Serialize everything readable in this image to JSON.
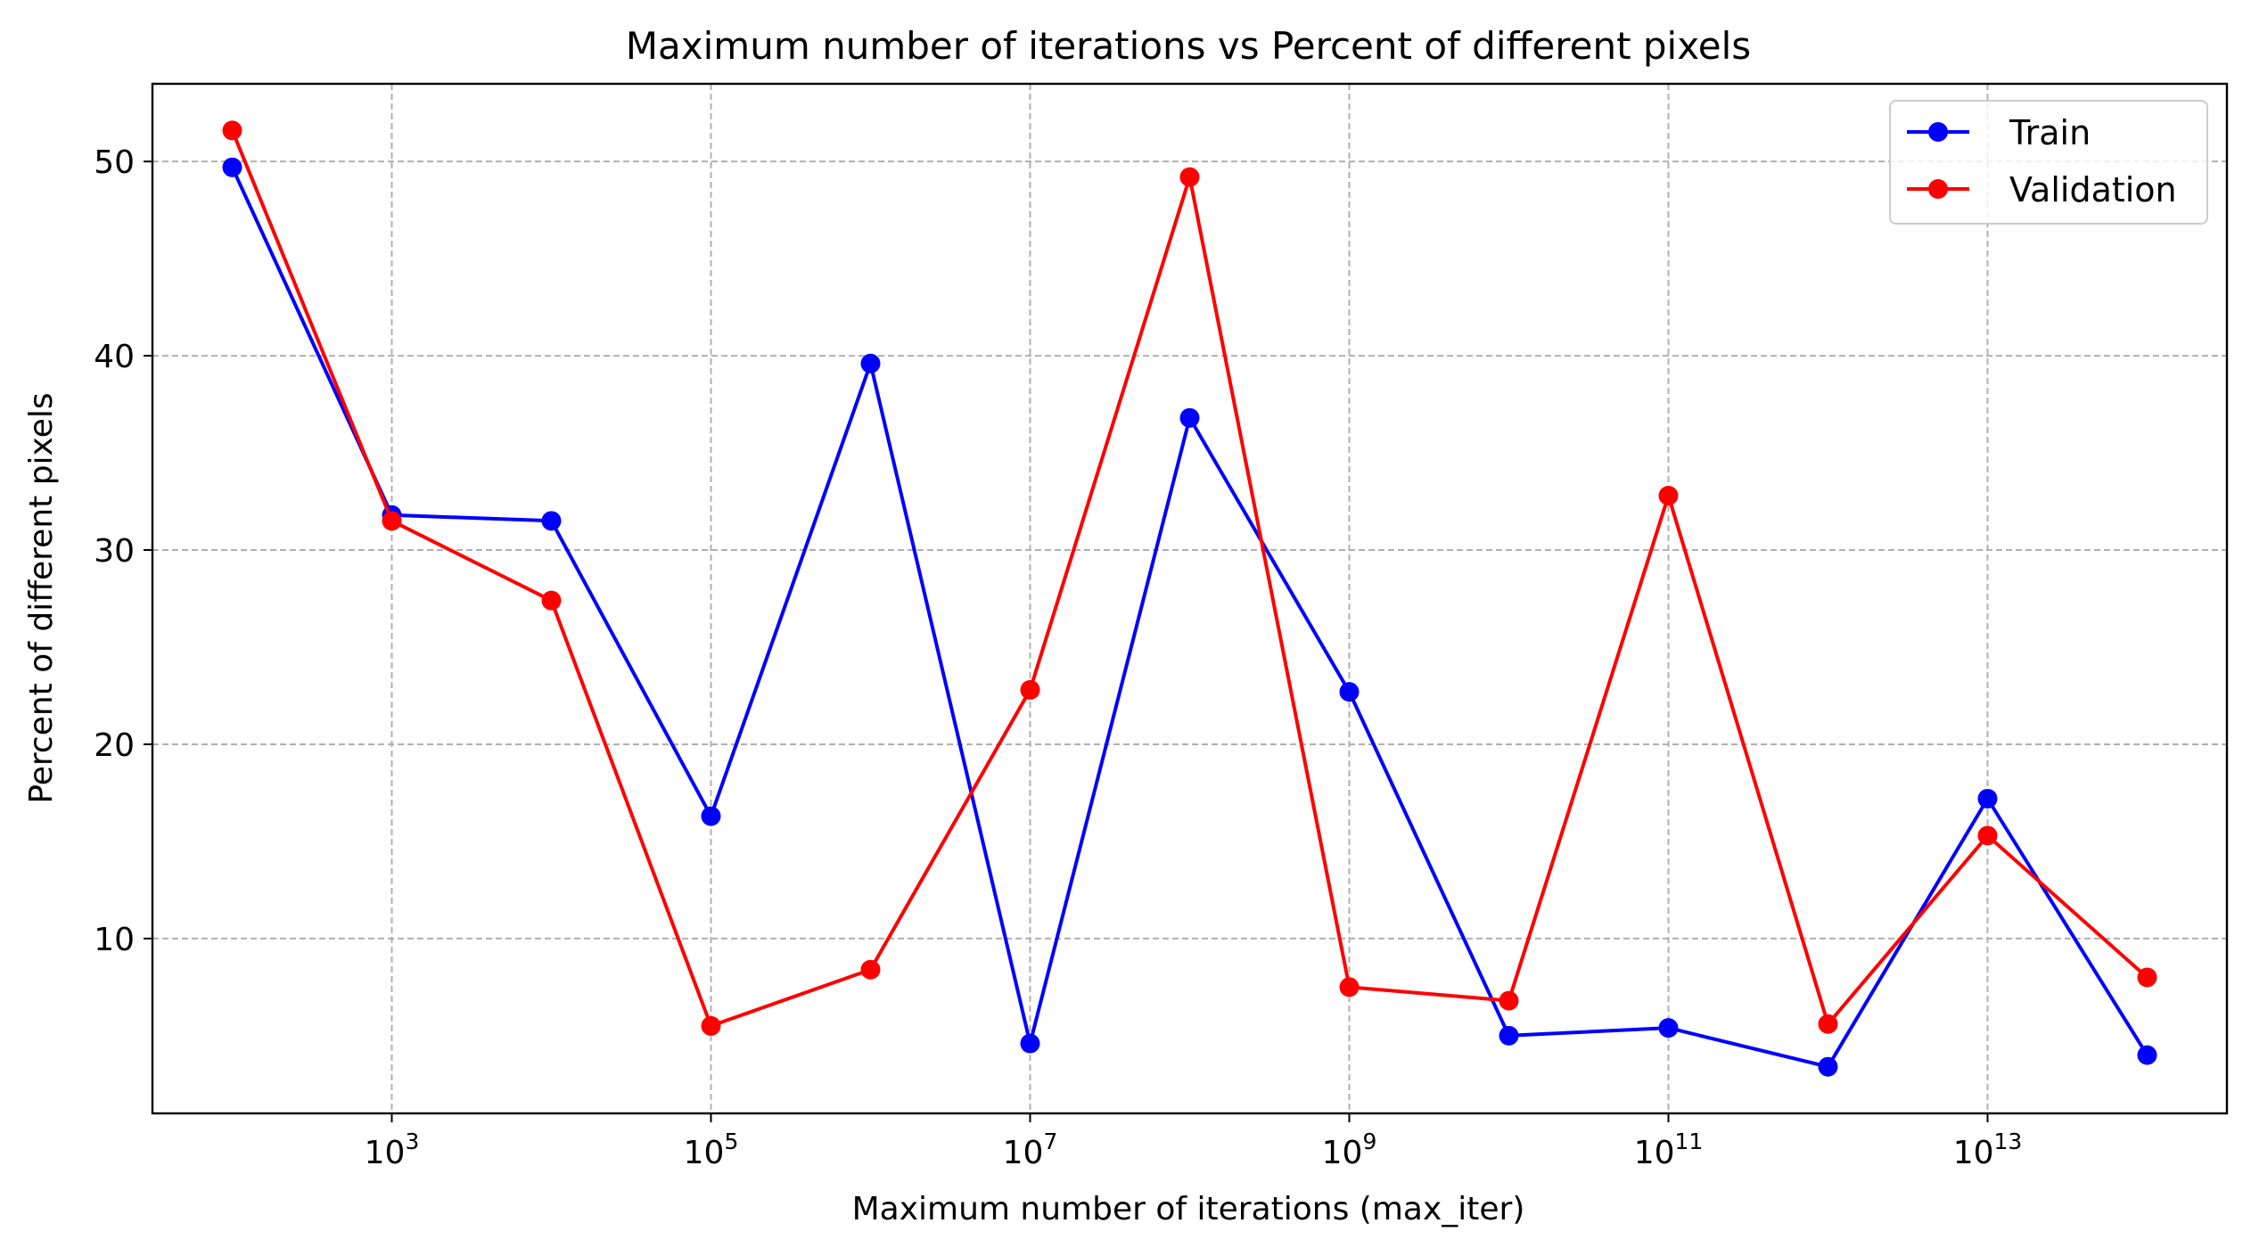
{
  "chart_data": {
    "type": "line",
    "title": "Maximum number of iterations vs Percent of different pixels",
    "xlabel": "Maximum number of iterations (max_iter)",
    "ylabel": "Percent of different pixels",
    "x_scale": "log",
    "x": [
      100,
      1000,
      10000,
      100000,
      1000000,
      10000000,
      100000000,
      1000000000,
      10000000000,
      100000000000,
      1000000000000,
      10000000000000,
      100000000000000
    ],
    "x_ticks": [
      {
        "base": "10",
        "exp": "3"
      },
      {
        "base": "10",
        "exp": "5"
      },
      {
        "base": "10",
        "exp": "7"
      },
      {
        "base": "10",
        "exp": "9"
      },
      {
        "base": "10",
        "exp": "11"
      },
      {
        "base": "10",
        "exp": "13"
      }
    ],
    "y_ticks": [
      "10",
      "20",
      "30",
      "40",
      "50"
    ],
    "ylim": [
      1.0,
      54.0
    ],
    "grid": true,
    "legend_position": "top-right",
    "series": [
      {
        "name": "Train",
        "color": "#0000ff",
        "values": [
          49.7,
          31.8,
          31.5,
          16.3,
          39.6,
          4.6,
          36.8,
          22.7,
          5.0,
          5.4,
          3.4,
          17.2,
          4.0
        ]
      },
      {
        "name": "Validation",
        "color": "#ff0000",
        "values": [
          51.6,
          31.5,
          27.4,
          5.5,
          8.4,
          22.8,
          49.2,
          7.5,
          6.8,
          32.8,
          5.6,
          15.3,
          8.0
        ]
      }
    ]
  }
}
